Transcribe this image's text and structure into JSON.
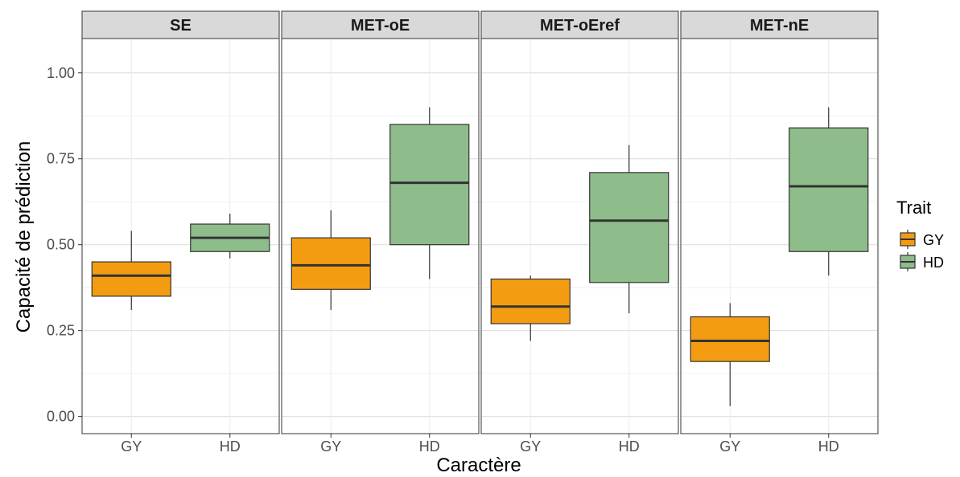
{
  "chart_data": {
    "type": "boxplot",
    "xlabel": "Caractère",
    "ylabel": "Capacité de prédiction",
    "ylim": [
      -0.05,
      1.1
    ],
    "y_ticks": [
      "0.00",
      "0.25",
      "0.50",
      "0.75",
      "1.00"
    ],
    "grid": true,
    "legend": {
      "title": "Trait",
      "placement": "right",
      "entries": [
        {
          "label": "GY",
          "color": "#F39C12"
        },
        {
          "label": "HD",
          "color": "#8FBC8B"
        }
      ]
    },
    "categories": [
      "GY",
      "HD"
    ],
    "panels": [
      {
        "name": "SE",
        "boxes": [
          {
            "category": "GY",
            "min": 0.31,
            "q1": 0.35,
            "median": 0.41,
            "q3": 0.45,
            "max": 0.54
          },
          {
            "category": "HD",
            "min": 0.46,
            "q1": 0.48,
            "median": 0.52,
            "q3": 0.56,
            "max": 0.59
          }
        ]
      },
      {
        "name": "MET-oE",
        "boxes": [
          {
            "category": "GY",
            "min": 0.31,
            "q1": 0.37,
            "median": 0.44,
            "q3": 0.52,
            "max": 0.6
          },
          {
            "category": "HD",
            "min": 0.4,
            "q1": 0.5,
            "median": 0.68,
            "q3": 0.85,
            "max": 0.9
          }
        ]
      },
      {
        "name": "MET-oEref",
        "boxes": [
          {
            "category": "GY",
            "min": 0.22,
            "q1": 0.27,
            "median": 0.32,
            "q3": 0.4,
            "max": 0.41
          },
          {
            "category": "HD",
            "min": 0.3,
            "q1": 0.39,
            "median": 0.57,
            "q3": 0.71,
            "max": 0.79
          }
        ]
      },
      {
        "name": "MET-nE",
        "boxes": [
          {
            "category": "GY",
            "min": 0.03,
            "q1": 0.16,
            "median": 0.22,
            "q3": 0.29,
            "max": 0.33
          },
          {
            "category": "HD",
            "min": 0.41,
            "q1": 0.48,
            "median": 0.67,
            "q3": 0.84,
            "max": 0.9
          }
        ]
      }
    ]
  }
}
